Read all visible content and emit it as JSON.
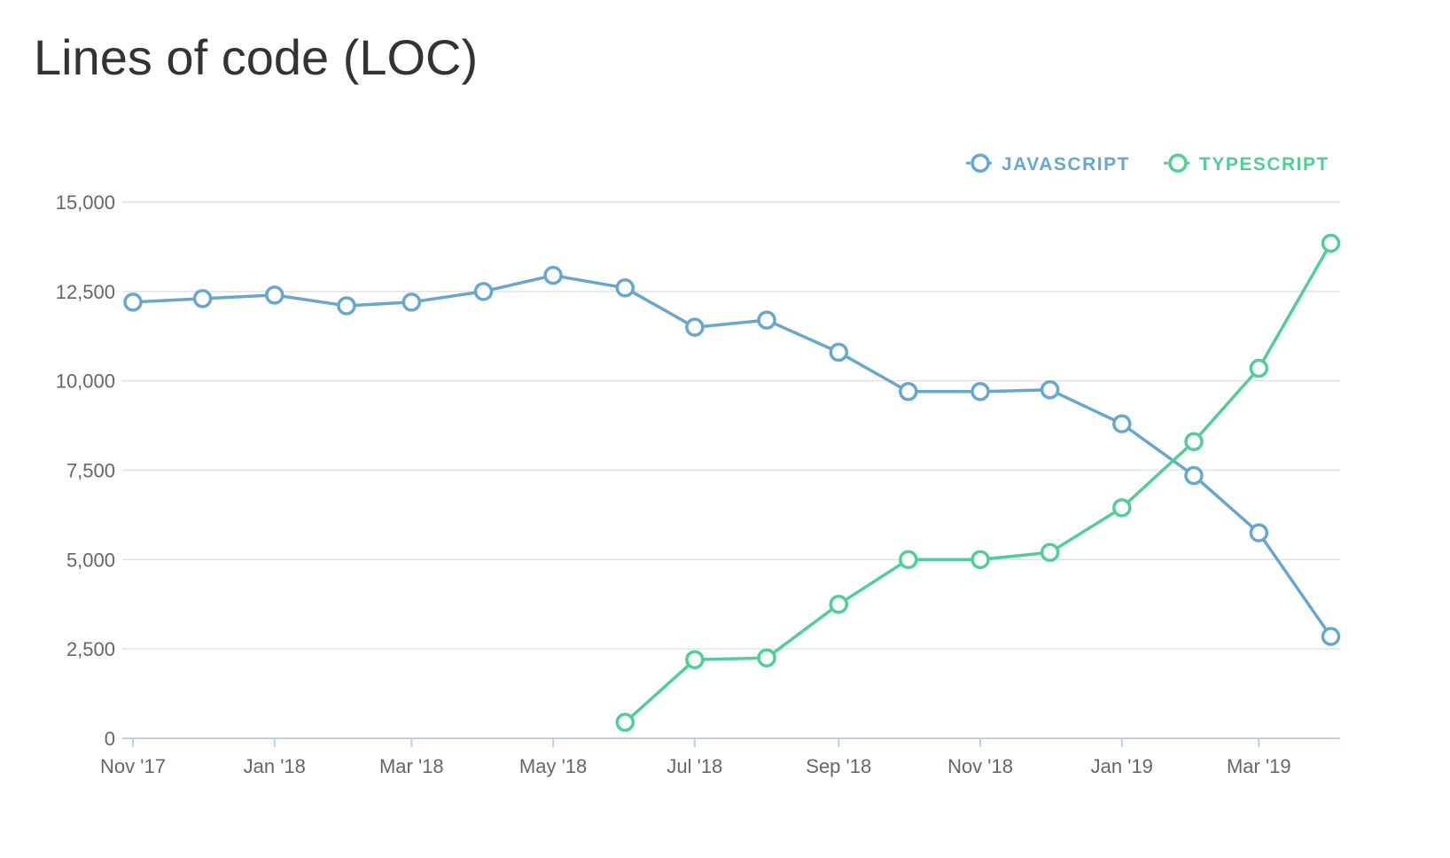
{
  "chart_data": {
    "type": "line",
    "title": "Lines of code (LOC)",
    "xlabel": "",
    "ylabel": "",
    "x": [
      "2017-11-01",
      "2017-12-01",
      "2018-01-01",
      "2018-02-01",
      "2018-03-01",
      "2018-04-01",
      "2018-05-01",
      "2018-06-01",
      "2018-07-01",
      "2018-08-01",
      "2018-09-01",
      "2018-10-01",
      "2018-11-01",
      "2018-12-01",
      "2019-01-01",
      "2019-02-01",
      "2019-03-01",
      "2019-04-01"
    ],
    "x_tick_labels": [
      "Nov '17",
      "Jan '18",
      "Mar '18",
      "May '18",
      "Jul '18",
      "Sep '18",
      "Nov '18",
      "Jan '19",
      "Mar '19"
    ],
    "x_tick_dates": [
      "2017-11-01",
      "2018-01-01",
      "2018-03-01",
      "2018-05-01",
      "2018-07-01",
      "2018-09-01",
      "2018-11-01",
      "2019-01-01",
      "2019-03-01"
    ],
    "y_ticks": [
      0,
      2500,
      5000,
      7500,
      10000,
      12500,
      15000
    ],
    "y_tick_labels": [
      "0",
      "2,500",
      "5,000",
      "7,500",
      "10,000",
      "12,500",
      "15,000"
    ],
    "ylim": [
      0,
      15000
    ],
    "xlim": [
      "2017-11-01",
      "2019-04-05"
    ],
    "grid": true,
    "legend_position": "top-right",
    "series": [
      {
        "name": "JAVASCRIPT",
        "color": "#68a7cd",
        "values": [
          12200,
          12300,
          12400,
          12100,
          12200,
          12500,
          12950,
          12600,
          11500,
          11700,
          10800,
          9700,
          9700,
          9750,
          8800,
          7350,
          5750,
          2850
        ]
      },
      {
        "name": "TYPESCRIPT",
        "color": "#4fcf96",
        "values": [
          null,
          null,
          null,
          null,
          null,
          null,
          null,
          450,
          2200,
          2250,
          3750,
          5000,
          5000,
          5200,
          6450,
          8300,
          10350,
          13850
        ]
      }
    ]
  }
}
